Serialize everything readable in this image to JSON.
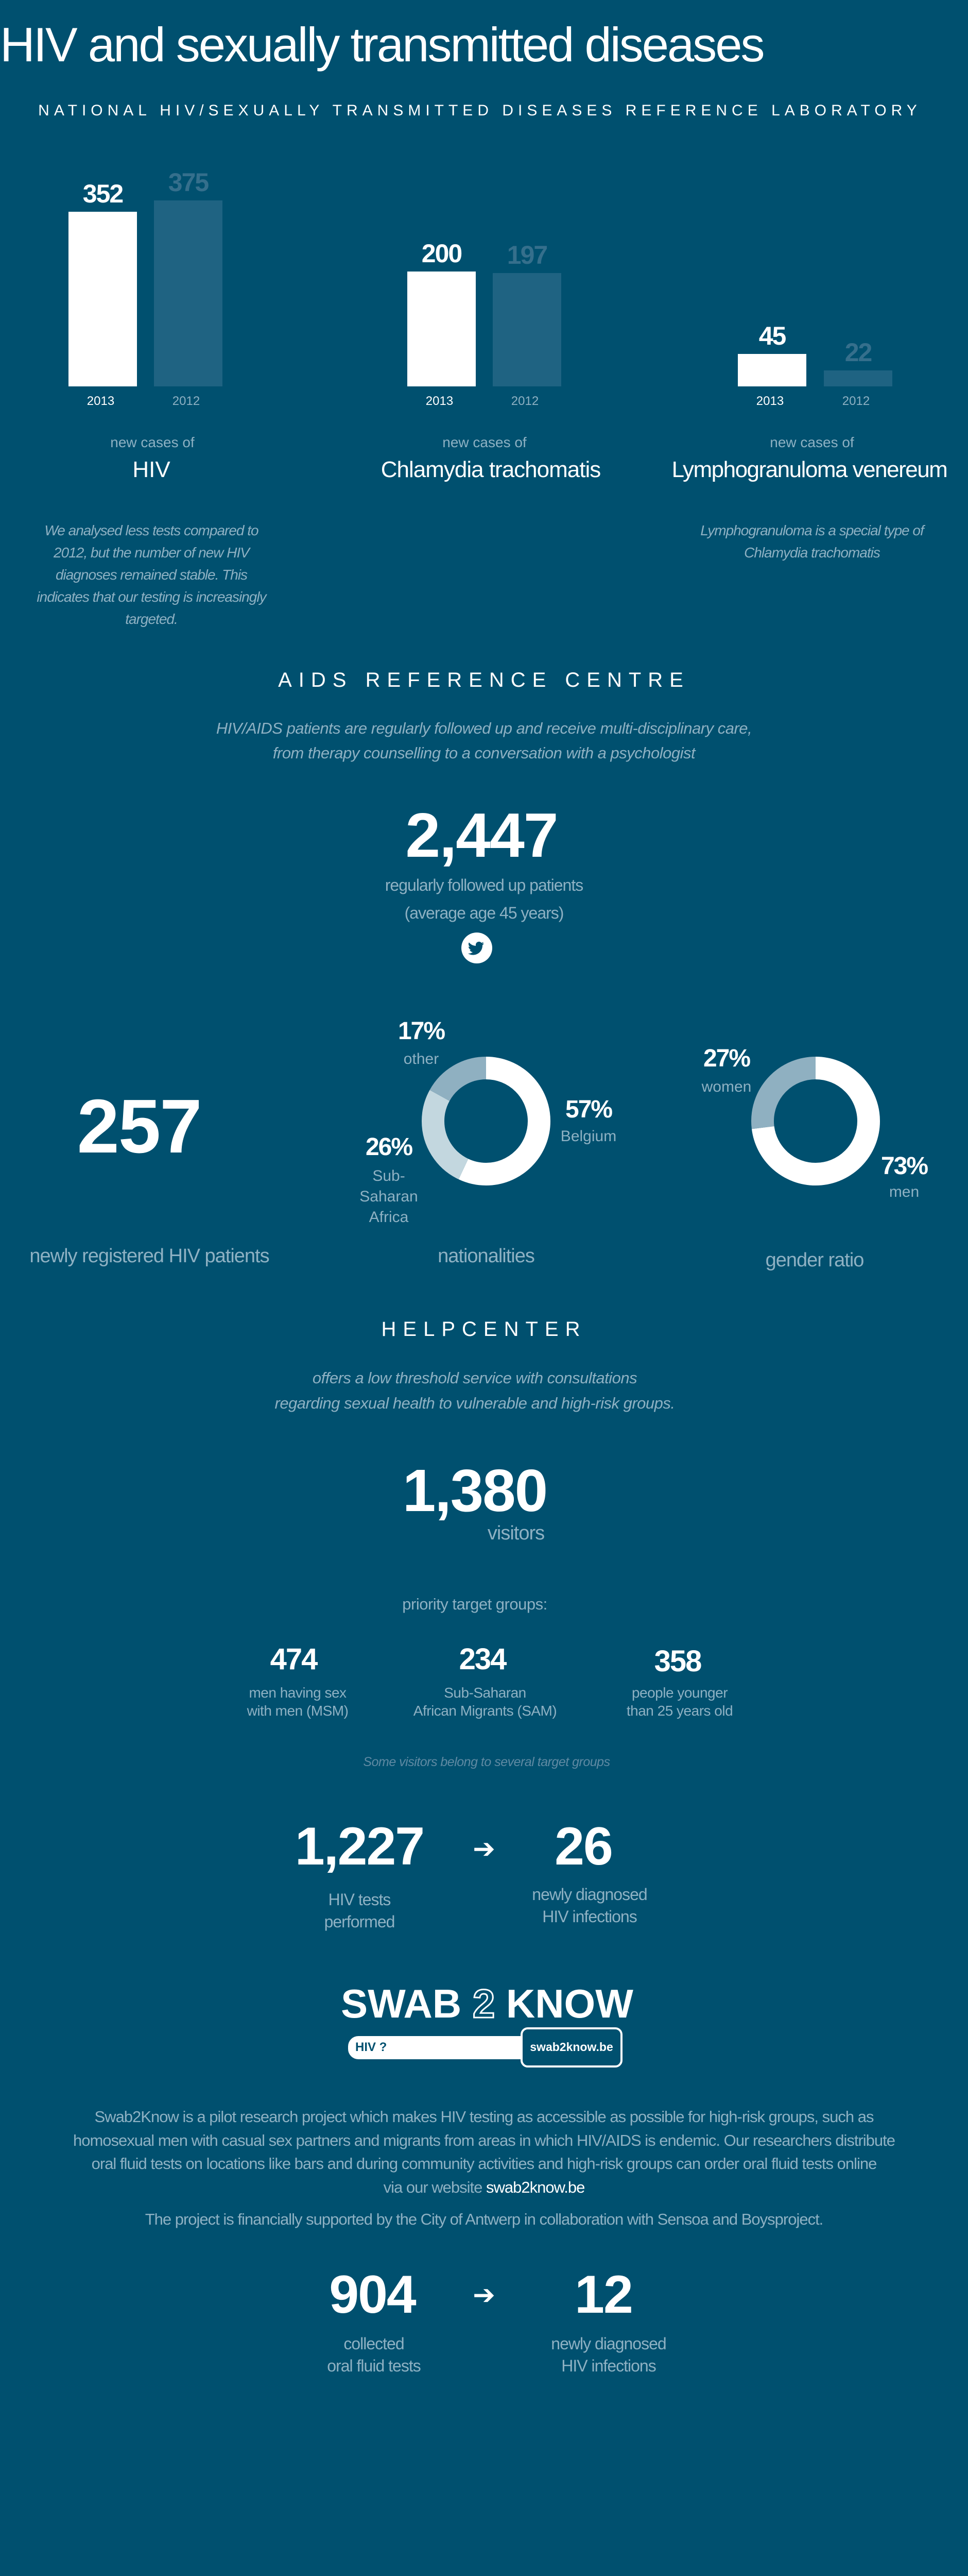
{
  "page_title": "HIV and sexually transmitted diseases",
  "colors": {
    "background": "#00506f",
    "muted_text": "#8eb1c3",
    "bar_2013": "#ffffff",
    "bar_2012": "#1f6382",
    "value_2012": "#356f8c",
    "segment_light": "#c3d7df",
    "segment_mid": "#8fb0c1",
    "footnote": "#5f8aa3"
  },
  "lab": {
    "heading": "NATIONAL HIV/SEXUALLY TRANSMITTED DISEASES REFERENCE LABORATORY",
    "groups": [
      {
        "prefix": "new cases of",
        "name": "HIV",
        "note_lines": [
          "We analysed less tests compared to",
          "2012, but the number of new HIV",
          "diagnoses remained stable. This",
          "indicates that our testing is increasingly",
          "targeted."
        ]
      },
      {
        "prefix": "new cases of",
        "name": "Chlamydia trachomatis",
        "note_lines": []
      },
      {
        "prefix": "new cases of",
        "name": "Lymphogranuloma venereum",
        "note_lines": [
          "Lymphogranuloma is a special type of",
          "Chlamydia trachomatis"
        ]
      }
    ]
  },
  "aids": {
    "heading": "AIDS REFERENCE CENTRE",
    "intro_lines": [
      "HIV/AIDS patients are regularly followed up and receive multi-disciplinary care,",
      "from therapy counselling to a conversation with a psychologist"
    ],
    "followed_count": "2,447",
    "followed_label": "regularly followed up patients",
    "followed_sub": "(average age 45 years)",
    "share_icon": "twitter-icon",
    "new_count": "257",
    "new_label": "newly registered HIV patients",
    "nationalities_label": "nationalities",
    "gender_label": "gender ratio"
  },
  "helpcenter": {
    "heading": "HELPCENTER",
    "intro_lines": [
      "offers a low threshold service with consultations",
      "regarding sexual health to vulnerable and high-risk groups."
    ],
    "visitors_count": "1,380",
    "visitors_label": "visitors",
    "groups_title": "priority target groups:",
    "groups": [
      {
        "value": "474",
        "lines": [
          "men having sex",
          "with men (MSM)"
        ]
      },
      {
        "value": "234",
        "lines": [
          "Sub-Saharan",
          "African Migrants (SAM)"
        ]
      },
      {
        "value": "358",
        "lines": [
          "people younger",
          "than 25 years old"
        ]
      }
    ],
    "groups_note": "Some visitors belong to several target groups",
    "tests_count": "1,227",
    "tests_lines": [
      "HIV tests",
      "performed"
    ],
    "arrow_icon": "arrow-right-icon",
    "arrow_glyph": "➔",
    "diag_count": "26",
    "diag_lines": [
      "newly diagnosed",
      "HIV infections"
    ]
  },
  "swab2know": {
    "logo_text": "SWAB 2 KNOW",
    "logo_left": "SWAB",
    "logo_two": "2",
    "logo_right": "KNOW",
    "logo_question": "HIV ?",
    "logo_url": "swab2know.be",
    "desc_lines": [
      "Swab2Know is a pilot research project which makes HIV testing as accessible as possible for high-risk groups, such as",
      "homosexual men with casual sex partners and migrants from areas in which HIV/AIDS is endemic. Our researchers distribute",
      "oral fluid tests on locations like bars and during community activities and high-risk groups can order oral fluid tests online"
    ],
    "desc_last_prefix": "via our website ",
    "desc_link": "swab2know.be",
    "support": "The project is financially supported by the City of Antwerp in collaboration with Sensoa and Boysproject.",
    "collected_count": "904",
    "collected_lines": [
      "collected",
      "oral fluid tests"
    ],
    "diag_count": "12",
    "diag_lines": [
      "newly diagnosed",
      "HIV infections"
    ]
  },
  "chart_data": [
    {
      "type": "bar",
      "categories": [
        "HIV",
        "Chlamydia trachomatis",
        "Lymphogranuloma venereum"
      ],
      "series": [
        {
          "name": "2013",
          "values": [
            352,
            200,
            45
          ]
        },
        {
          "name": "2012",
          "values": [
            375,
            197,
            22
          ]
        }
      ],
      "title": "",
      "xlabel": "",
      "ylabel": "",
      "grid": false
    },
    {
      "type": "pie",
      "title": "nationalities",
      "slices": [
        {
          "label": "Belgium",
          "value": 57,
          "color": "#ffffff"
        },
        {
          "label": "Sub-Saharan Africa",
          "value": 26,
          "color": "#c3d7df"
        },
        {
          "label": "other",
          "value": 17,
          "color": "#8fb0c1"
        }
      ]
    },
    {
      "type": "pie",
      "title": "gender ratio",
      "slices": [
        {
          "label": "men",
          "value": 73,
          "color": "#ffffff"
        },
        {
          "label": "women",
          "value": 27,
          "color": "#8fb0c1"
        }
      ]
    }
  ]
}
